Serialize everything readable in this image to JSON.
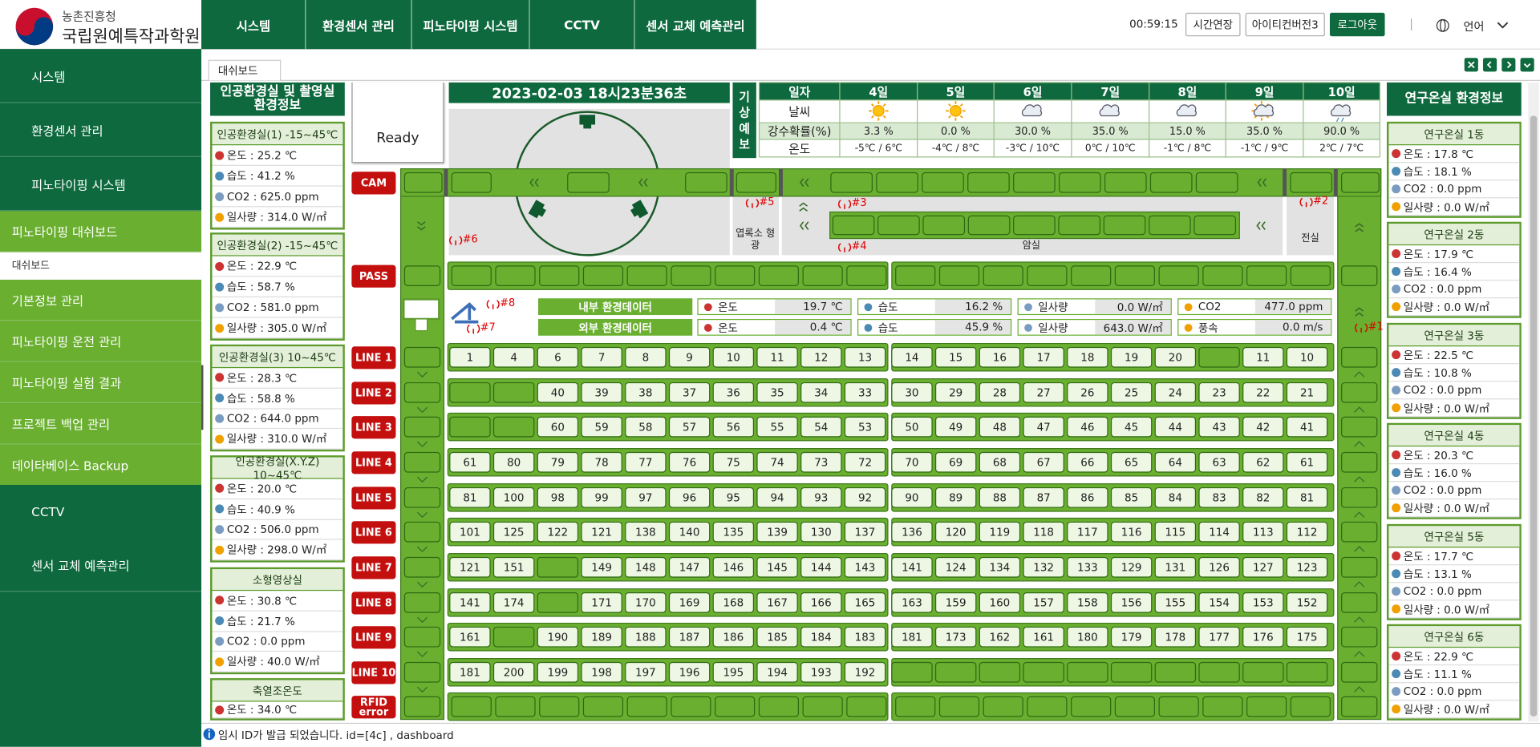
{
  "header": {
    "org": "농촌진흥청",
    "institute": "국립원예특작과학원",
    "nav": [
      "시스템",
      "환경센서 관리",
      "피노타이핑 시스템",
      "CCTV",
      "센서 교체 예측관리"
    ],
    "timer": "00:59:15",
    "buttons": [
      "시간연장",
      "아이티컨버전3",
      "로그아웃"
    ],
    "language": "언어"
  },
  "sidebar": {
    "menu_top": [
      "시스템",
      "환경센서 관리",
      "피노타이핑 시스템"
    ],
    "active": "피노타이핑 대쉬보드",
    "active_child": "대쉬보드",
    "submenu": [
      "기본정보 관리",
      "피노타이핑 운전 관리",
      "피노타이핑 실험 결과",
      "프로젝트 백업 관리",
      "데이타베이스 Backup"
    ],
    "menu_bottom": [
      "CCTV",
      "센서 교체 예측관리"
    ]
  },
  "tab": "대쉬보드",
  "left_panel": {
    "title": "인공환경실 및 촬영실 환경정보",
    "rooms": [
      {
        "name": "인공환경실(1) -15~45℃",
        "readings": [
          "온도 : 25.2 ℃",
          "습도 : 41.2 %",
          "CO2 : 625.0 ppm",
          "일사량 : 314.0 W/㎡"
        ]
      },
      {
        "name": "인공환경실(2) -15~45℃",
        "readings": [
          "온도 : 22.9 ℃",
          "습도 : 58.7 %",
          "CO2 : 581.0 ppm",
          "일사량 : 305.0 W/㎡"
        ]
      },
      {
        "name": "인공환경실(3) 10~45℃",
        "readings": [
          "온도 : 28.3 ℃",
          "습도 : 58.8 %",
          "CO2 : 644.0 ppm",
          "일사량 : 310.0 W/㎡"
        ]
      },
      {
        "name": "인공환경실(X.Y.Z) 10~45℃",
        "readings": [
          "온도 : 20.0 ℃",
          "습도 : 40.9 %",
          "CO2 : 506.0 ppm",
          "일사량 : 298.0 W/㎡"
        ]
      },
      {
        "name": "소형영상실",
        "readings": [
          "온도 : 30.8 ℃",
          "습도 : 21.7 %",
          "CO2 : 0.0 ppm",
          "일사량 : 40.0 W/㎡"
        ]
      },
      {
        "name": "축열조온도",
        "readings": [
          "온도 : 34.0 ℃"
        ]
      }
    ]
  },
  "right_panel": {
    "title": "연구온실 환경정보",
    "rooms": [
      {
        "name": "연구온실 1동",
        "readings": [
          "온도 : 17.8 ℃",
          "습도 : 18.1 %",
          "CO2 : 0.0 ppm",
          "일사량 : 0.0 W/㎡"
        ]
      },
      {
        "name": "연구온실 2동",
        "readings": [
          "온도 : 17.9 ℃",
          "습도 : 16.4 %",
          "CO2 : 0.0 ppm",
          "일사량 : 0.0 W/㎡"
        ]
      },
      {
        "name": "연구온실 3동",
        "readings": [
          "온도 : 22.5 ℃",
          "습도 : 10.8 %",
          "CO2 : 0.0 ppm",
          "일사량 : 0.0 W/㎡"
        ]
      },
      {
        "name": "연구온실 4동",
        "readings": [
          "온도 : 20.3 ℃",
          "습도 : 16.0 %",
          "CO2 : 0.0 ppm",
          "일사량 : 0.0 W/㎡"
        ]
      },
      {
        "name": "연구온실 5동",
        "readings": [
          "온도 : 17.7 ℃",
          "습도 : 13.1 %",
          "CO2 : 0.0 ppm",
          "일사량 : 0.0 W/㎡"
        ]
      },
      {
        "name": "연구온실 6동",
        "readings": [
          "온도 : 22.9 ℃",
          "습도 : 11.1 %",
          "CO2 : 0.0 ppm",
          "일사량 : 0.0 W/㎡"
        ]
      }
    ]
  },
  "status": "Ready",
  "datetime": "2023-02-03 18시23분36초",
  "forecast": {
    "label": "기상예보",
    "header_label": "일자",
    "days": [
      "4일",
      "5일",
      "6일",
      "7일",
      "8일",
      "9일",
      "10일"
    ],
    "row_labels": [
      "날씨",
      "강수확률(%)",
      "온도"
    ],
    "weather": [
      "sunny",
      "sunny",
      "cloudy",
      "cloudy",
      "cloudy",
      "partly-cloudy",
      "rain"
    ],
    "precipitation": [
      "3.3 %",
      "0.0 %",
      "30.0 %",
      "35.0 %",
      "15.0 %",
      "35.0 %",
      "90.0 %"
    ],
    "temperature": [
      "-5℃ / 6℃",
      "-4℃ / 8℃",
      "-3℃ / 10℃",
      "0℃ / 10℃",
      "-1℃ / 8℃",
      "-1℃ / 9℃",
      "2℃ / 7℃"
    ]
  },
  "row_labels": [
    "CAM",
    "PASS",
    "LINE 1",
    "LINE 2",
    "LINE 3",
    "LINE 4",
    "LINE 5",
    "LINE 6",
    "LINE 7",
    "LINE 8",
    "LINE 9",
    "LINE 10",
    "RFID error"
  ],
  "zones": [
    "#6",
    "#5",
    "#3",
    "#4",
    "#2",
    "#8",
    "#7",
    "#1"
  ],
  "zone_rooms": [
    "엽록소 형광",
    "암실",
    "전실"
  ],
  "env": {
    "inside": {
      "label": "내부 환경데이터",
      "items": [
        {
          "name": "온도",
          "value": "19.7 ℃"
        },
        {
          "name": "습도",
          "value": "16.2 %"
        },
        {
          "name": "일사량",
          "value": "0.0 W/㎡"
        },
        {
          "name": "CO2",
          "value": "477.0 ppm"
        }
      ]
    },
    "outside": {
      "label": "외부 환경데이터",
      "items": [
        {
          "name": "온도",
          "value": "0.4 ℃"
        },
        {
          "name": "습도",
          "value": "45.9 %"
        },
        {
          "name": "일사량",
          "value": "643.0 W/㎡"
        },
        {
          "name": "풍속",
          "value": "0.0 m/s"
        }
      ]
    }
  },
  "lines": [
    [
      1,
      4,
      6,
      7,
      8,
      9,
      10,
      11,
      12,
      13,
      14,
      15,
      16,
      17,
      18,
      19,
      20,
      null,
      11,
      10
    ],
    [
      null,
      null,
      40,
      39,
      38,
      37,
      36,
      35,
      34,
      33,
      30,
      29,
      28,
      27,
      26,
      25,
      24,
      23,
      22,
      21
    ],
    [
      null,
      null,
      60,
      59,
      58,
      57,
      56,
      55,
      54,
      53,
      50,
      49,
      48,
      47,
      46,
      45,
      44,
      43,
      42,
      41
    ],
    [
      61,
      80,
      79,
      78,
      77,
      76,
      75,
      74,
      73,
      72,
      70,
      69,
      68,
      67,
      66,
      65,
      64,
      63,
      62,
      61
    ],
    [
      81,
      100,
      98,
      99,
      97,
      96,
      95,
      94,
      93,
      92,
      90,
      89,
      88,
      87,
      86,
      85,
      84,
      83,
      82,
      81
    ],
    [
      101,
      125,
      122,
      121,
      138,
      140,
      135,
      139,
      130,
      137,
      136,
      120,
      119,
      118,
      117,
      116,
      115,
      114,
      113,
      112
    ],
    [
      121,
      151,
      null,
      149,
      148,
      147,
      146,
      145,
      144,
      143,
      141,
      124,
      134,
      132,
      133,
      129,
      131,
      126,
      127,
      123
    ],
    [
      141,
      174,
      null,
      171,
      170,
      169,
      168,
      167,
      166,
      165,
      163,
      159,
      160,
      157,
      158,
      156,
      155,
      154,
      153,
      152
    ],
    [
      161,
      null,
      190,
      189,
      188,
      187,
      186,
      185,
      184,
      183,
      181,
      173,
      162,
      161,
      180,
      179,
      178,
      177,
      176,
      175
    ],
    [
      181,
      200,
      199,
      198,
      197,
      196,
      195,
      194,
      193,
      192,
      null,
      null,
      null,
      null,
      null,
      null,
      null,
      null,
      null,
      null
    ]
  ],
  "message": "임시 ID가 발급 되었습니다. id=[4c] , dashboard"
}
